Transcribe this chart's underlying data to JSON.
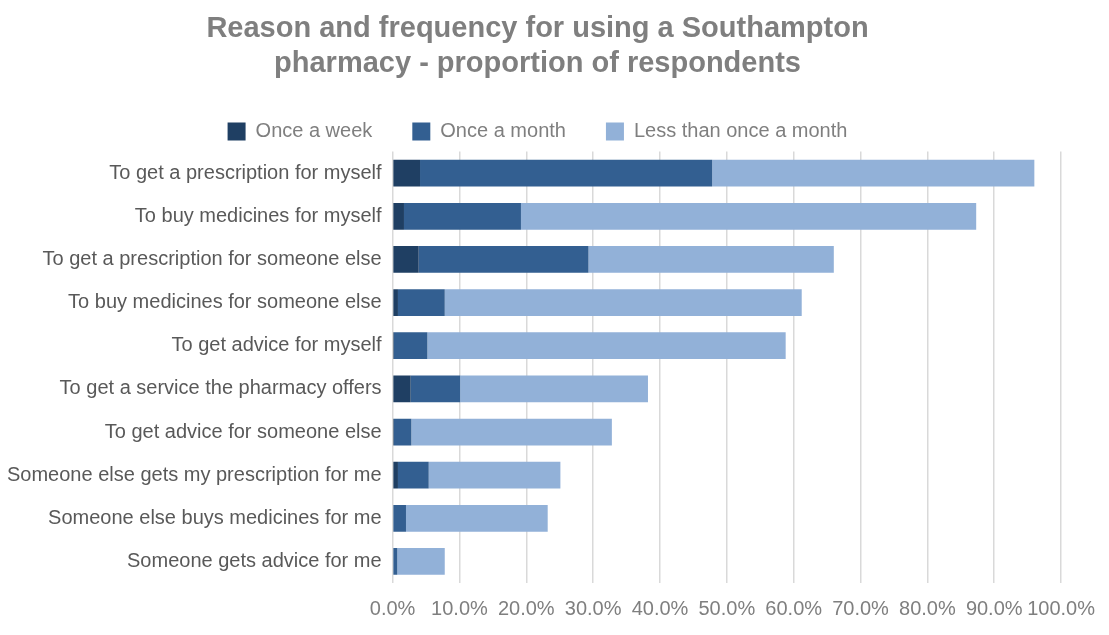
{
  "chart_data": {
    "type": "bar",
    "orientation": "horizontal",
    "stacked": true,
    "title": [
      "Reason and frequency for using a Southampton",
      "pharmacy - proportion of respondents"
    ],
    "categories": [
      "To get a prescription for myself",
      "To buy medicines for myself",
      "To get a prescription for someone else",
      "To buy medicines for someone else",
      "To get advice for myself",
      "To get a service the pharmacy offers",
      "To get advice for someone else",
      "Someone else gets my prescription for me",
      "Someone else buys medicines for me",
      "Someone gets advice for me"
    ],
    "series": [
      {
        "name": "Once a week",
        "color": "#1f3f63",
        "values": [
          4.1,
          1.7,
          3.9,
          0.8,
          0.2,
          2.7,
          0.2,
          0.8,
          0,
          0
        ]
      },
      {
        "name": "Once a month",
        "color": "#335f91",
        "values": [
          43.7,
          17.5,
          25.4,
          7.0,
          5.0,
          7.4,
          2.6,
          4.6,
          2.0,
          0.7
        ]
      },
      {
        "name": "Less than once a month",
        "color": "#92b1d8",
        "values": [
          48.2,
          68.1,
          36.7,
          53.4,
          53.6,
          28.1,
          30.0,
          19.7,
          21.2,
          7.1
        ]
      }
    ],
    "xlim": [
      0,
      100
    ],
    "xticks": [
      {
        "value": 0,
        "label": "0.0%"
      },
      {
        "value": 10,
        "label": "10.0%"
      },
      {
        "value": 20,
        "label": "20.0%"
      },
      {
        "value": 30,
        "label": "30.0%"
      },
      {
        "value": 40,
        "label": "40.0%"
      },
      {
        "value": 50,
        "label": "50.0%"
      },
      {
        "value": 60,
        "label": "60.0%"
      },
      {
        "value": 70,
        "label": "70.0%"
      },
      {
        "value": 80,
        "label": "80.0%"
      },
      {
        "value": 90,
        "label": "90.0%"
      },
      {
        "value": 100,
        "label": "100.0%"
      }
    ],
    "grid": "x",
    "legend": "top"
  }
}
